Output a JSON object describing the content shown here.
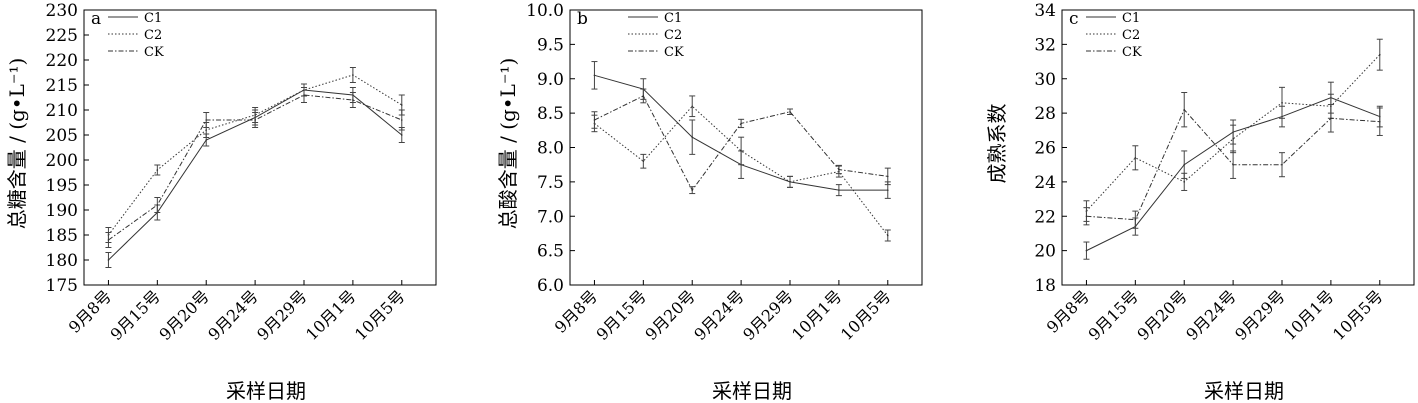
{
  "chart_data": [
    {
      "type": "line",
      "panel_label": "a",
      "categories": [
        "9月8号",
        "9月15号",
        "9月20号",
        "9月24号",
        "9月29号",
        "10月1号",
        "10月5号"
      ],
      "xlabel": "采样日期",
      "ylabel": "总糖含量 / (g•L⁻¹)",
      "ylim": [
        175,
        230
      ],
      "yticks": [
        175,
        180,
        185,
        190,
        195,
        200,
        205,
        210,
        215,
        220,
        225,
        230
      ],
      "grid": false,
      "legend_position": "top-left",
      "series": [
        {
          "name": "C1",
          "style": "solid",
          "values": [
            180,
            189.5,
            204,
            208.5,
            214,
            213,
            205
          ],
          "errors": [
            1.5,
            1.5,
            1.2,
            1.5,
            1.2,
            1.5,
            1.5
          ]
        },
        {
          "name": "C2",
          "style": "dotted",
          "values": [
            185,
            198,
            206,
            209,
            214,
            217,
            211
          ],
          "errors": [
            1.5,
            1,
            1.5,
            1.5,
            1.2,
            1.5,
            2
          ]
        },
        {
          "name": "CK",
          "style": "dashed",
          "values": [
            184,
            191,
            208,
            208,
            213,
            212,
            208
          ],
          "errors": [
            1.5,
            1.5,
            1.5,
            1.5,
            1.5,
            1.5,
            2
          ]
        }
      ]
    },
    {
      "type": "line",
      "panel_label": "b",
      "categories": [
        "9月8号",
        "9月15号",
        "9月20号",
        "9月24号",
        "9月29号",
        "10月1号",
        "10月5号"
      ],
      "xlabel": "采样日期",
      "ylabel": "总酸含量 / (g•L⁻¹)",
      "ylim": [
        6.0,
        10.0
      ],
      "yticks": [
        "6.0",
        "6.5",
        "7.0",
        "7.5",
        "8.0",
        "8.5",
        "9.0",
        "9.5",
        "10.0"
      ],
      "grid": false,
      "legend_position": "top-right",
      "series": [
        {
          "name": "C1",
          "style": "solid",
          "values": [
            9.05,
            8.85,
            8.15,
            7.75,
            7.5,
            7.38,
            7.38
          ],
          "errors": [
            0.2,
            0.15,
            0.25,
            0.2,
            0.08,
            0.08,
            0.12
          ]
        },
        {
          "name": "C2",
          "style": "dotted",
          "values": [
            8.35,
            7.8,
            8.6,
            7.95,
            7.5,
            7.65,
            6.72
          ],
          "errors": [
            0.12,
            0.1,
            0.15,
            0.2,
            0.08,
            0.08,
            0.08
          ]
        },
        {
          "name": "CK",
          "style": "dashed",
          "values": [
            8.4,
            8.75,
            7.38,
            8.35,
            8.52,
            7.68,
            7.58
          ],
          "errors": [
            0.12,
            0.1,
            0.05,
            0.06,
            0.04,
            0.06,
            0.12
          ]
        }
      ]
    },
    {
      "type": "line",
      "panel_label": "c",
      "categories": [
        "9月8号",
        "9月15号",
        "9月20号",
        "9月24号",
        "9月29号",
        "10月1号",
        "10月5号"
      ],
      "xlabel": "采样日期",
      "ylabel": "成熟系数",
      "ylim": [
        18,
        34
      ],
      "yticks": [
        18,
        20,
        22,
        24,
        26,
        28,
        30,
        32,
        34
      ],
      "grid": false,
      "legend_position": "top-left",
      "series": [
        {
          "name": "C1",
          "style": "solid",
          "values": [
            20,
            21.4,
            25,
            26.9,
            27.8,
            28.9,
            27.8
          ],
          "errors": [
            0.5,
            0.5,
            0.8,
            0.7,
            0.6,
            0.9,
            0.6
          ]
        },
        {
          "name": "C2",
          "style": "dotted",
          "values": [
            22.3,
            25.4,
            24,
            26.5,
            28.6,
            28.4,
            31.4
          ],
          "errors": [
            0.6,
            0.7,
            0.5,
            0.8,
            0.9,
            0.7,
            0.9
          ]
        },
        {
          "name": "CK",
          "style": "dashed",
          "values": [
            22,
            21.8,
            28.2,
            25,
            25,
            27.7,
            27.5
          ],
          "errors": [
            0.5,
            0.5,
            1,
            0.8,
            0.7,
            0.8,
            0.8
          ]
        }
      ]
    }
  ]
}
